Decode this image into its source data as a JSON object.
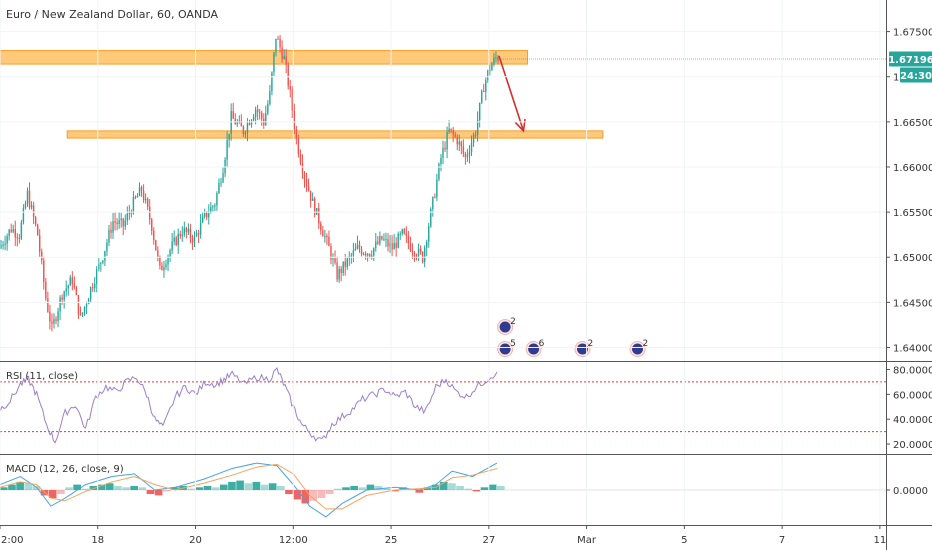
{
  "chart_data": [
    {
      "type": "candlestick",
      "title": "Euro / New Zealand Dollar, 60, OANDA",
      "ylim": [
        1.6385,
        1.6785
      ],
      "y_ticks": [
        "1.67500",
        "1.67000",
        "1.66500",
        "1.66000",
        "1.65500",
        "1.65000",
        "1.64500",
        "1.64000"
      ],
      "y_tick_values": [
        1.675,
        1.67,
        1.665,
        1.66,
        1.655,
        1.65,
        1.645,
        1.64
      ],
      "x_ticks": [
        "2:00",
        "18",
        "20",
        "12:00",
        "25",
        "27",
        "Mar",
        "5",
        "7",
        "11"
      ],
      "x_tick_positions": [
        0,
        48,
        96,
        144,
        192,
        240,
        288,
        336,
        384,
        432
      ],
      "x_range": [
        0,
        435
      ],
      "last_price": "1.67196",
      "last_price_value": 1.67196,
      "countdown": "24:30",
      "countdown_value": 1.6705,
      "up_color": "#26a69a",
      "down_color": "#ef5350",
      "zones": [
        {
          "x0": -2,
          "x1": 259,
          "low": 1.6714,
          "high": 1.6729
        },
        {
          "x0": 33,
          "x1": 296,
          "low": 1.6632,
          "high": 1.664
        }
      ],
      "arrow": {
        "from": [
          245,
          1.6723
        ],
        "to": [
          257,
          1.664
        ],
        "color": "#d32f2f"
      },
      "price_path": [
        [
          0,
          1.651
        ],
        [
          6,
          1.6532
        ],
        [
          10,
          1.6525
        ],
        [
          14,
          1.657
        ],
        [
          19,
          1.6525
        ],
        [
          23,
          1.6455
        ],
        [
          26,
          1.642
        ],
        [
          31,
          1.646
        ],
        [
          36,
          1.6475
        ],
        [
          40,
          1.6432
        ],
        [
          45,
          1.6465
        ],
        [
          51,
          1.6502
        ],
        [
          56,
          1.654
        ],
        [
          61,
          1.6535
        ],
        [
          66,
          1.656
        ],
        [
          70,
          1.6575
        ],
        [
          75,
          1.6535
        ],
        [
          79,
          1.6485
        ],
        [
          85,
          1.6512
        ],
        [
          90,
          1.653
        ],
        [
          96,
          1.652
        ],
        [
          101,
          1.6545
        ],
        [
          106,
          1.656
        ],
        [
          110,
          1.66
        ],
        [
          114,
          1.6655
        ],
        [
          120,
          1.664
        ],
        [
          126,
          1.6665
        ],
        [
          130,
          1.665
        ],
        [
          133,
          1.668
        ],
        [
          136,
          1.6745
        ],
        [
          140,
          1.672
        ],
        [
          143,
          1.668
        ],
        [
          146,
          1.663
        ],
        [
          150,
          1.659
        ],
        [
          154,
          1.656
        ],
        [
          158,
          1.6535
        ],
        [
          162,
          1.651
        ],
        [
          166,
          1.648
        ],
        [
          171,
          1.6495
        ],
        [
          176,
          1.651
        ],
        [
          182,
          1.6505
        ],
        [
          188,
          1.652
        ],
        [
          193,
          1.651
        ],
        [
          198,
          1.6525
        ],
        [
          203,
          1.651
        ],
        [
          208,
          1.65
        ],
        [
          213,
          1.656
        ],
        [
          217,
          1.661
        ],
        [
          221,
          1.664
        ],
        [
          225,
          1.663
        ],
        [
          229,
          1.661
        ],
        [
          234,
          1.664
        ],
        [
          238,
          1.669
        ],
        [
          241,
          1.671
        ],
        [
          244,
          1.6721
        ]
      ]
    },
    {
      "type": "line",
      "title": "RSI (11, close)",
      "ylim": [
        12,
        86
      ],
      "y_ticks": [
        "80.0000",
        "60.0000",
        "40.0000",
        "20.0000"
      ],
      "y_tick_values": [
        80,
        60,
        40,
        20
      ],
      "levels": [
        70,
        30
      ],
      "line_color": "#9c7fc8",
      "level_color": "#e53935",
      "series": [
        [
          0,
          48
        ],
        [
          5,
          55
        ],
        [
          10,
          68
        ],
        [
          14,
          72
        ],
        [
          18,
          60
        ],
        [
          23,
          35
        ],
        [
          27,
          22
        ],
        [
          32,
          45
        ],
        [
          37,
          52
        ],
        [
          42,
          32
        ],
        [
          47,
          58
        ],
        [
          52,
          66
        ],
        [
          57,
          62
        ],
        [
          62,
          70
        ],
        [
          67,
          74
        ],
        [
          72,
          60
        ],
        [
          76,
          40
        ],
        [
          80,
          33
        ],
        [
          86,
          58
        ],
        [
          91,
          66
        ],
        [
          96,
          60
        ],
        [
          101,
          70
        ],
        [
          106,
          68
        ],
        [
          110,
          72
        ],
        [
          114,
          76
        ],
        [
          120,
          68
        ],
        [
          126,
          74
        ],
        [
          132,
          72
        ],
        [
          136,
          80
        ],
        [
          140,
          66
        ],
        [
          144,
          50
        ],
        [
          148,
          36
        ],
        [
          153,
          28
        ],
        [
          158,
          22
        ],
        [
          163,
          36
        ],
        [
          168,
          42
        ],
        [
          173,
          48
        ],
        [
          178,
          56
        ],
        [
          184,
          60
        ],
        [
          189,
          64
        ],
        [
          194,
          58
        ],
        [
          199,
          62
        ],
        [
          204,
          50
        ],
        [
          209,
          46
        ],
        [
          214,
          66
        ],
        [
          219,
          72
        ],
        [
          224,
          62
        ],
        [
          229,
          58
        ],
        [
          234,
          66
        ],
        [
          239,
          72
        ],
        [
          244,
          78
        ]
      ]
    },
    {
      "type": "bar",
      "title": "MACD (12, 26, close, 9)",
      "ylim": [
        -0.0026,
        0.0026
      ],
      "y_ticks": [
        "0.0000"
      ],
      "y_tick_values": [
        0
      ],
      "macd_color": "#4aa3df",
      "signal_color": "#f4a460",
      "histogram": [
        [
          0,
          0.0002
        ],
        [
          4,
          0.0004
        ],
        [
          8,
          0.0006
        ],
        [
          12,
          0.0005
        ],
        [
          16,
          0.0003
        ],
        [
          20,
          -0.0004
        ],
        [
          24,
          -0.0006
        ],
        [
          28,
          -0.0003
        ],
        [
          32,
          0.0002
        ],
        [
          36,
          0.0004
        ],
        [
          40,
          0.0001
        ],
        [
          44,
          0.0003
        ],
        [
          48,
          0.0004
        ],
        [
          52,
          0.0005
        ],
        [
          56,
          0.0003
        ],
        [
          60,
          0.0002
        ],
        [
          64,
          0.0003
        ],
        [
          68,
          0.0002
        ],
        [
          72,
          -0.0003
        ],
        [
          76,
          -0.0004
        ],
        [
          80,
          -0.0001
        ],
        [
          84,
          0.0002
        ],
        [
          88,
          0.0003
        ],
        [
          92,
          0.0001
        ],
        [
          96,
          0.0002
        ],
        [
          100,
          0.0003
        ],
        [
          104,
          0.0002
        ],
        [
          108,
          0.0004
        ],
        [
          112,
          0.0006
        ],
        [
          116,
          0.0007
        ],
        [
          120,
          0.0005
        ],
        [
          124,
          0.0006
        ],
        [
          128,
          0.0004
        ],
        [
          132,
          0.0005
        ],
        [
          136,
          0.0003
        ],
        [
          140,
          -0.0003
        ],
        [
          144,
          -0.0007
        ],
        [
          148,
          -0.001
        ],
        [
          152,
          -0.0008
        ],
        [
          156,
          -0.0006
        ],
        [
          160,
          -0.0003
        ],
        [
          164,
          0.0001
        ],
        [
          168,
          0.0002
        ],
        [
          172,
          0.0003
        ],
        [
          176,
          0.0002
        ],
        [
          180,
          0.0004
        ],
        [
          184,
          0.0003
        ],
        [
          188,
          0.0001
        ],
        [
          192,
          -0.0001
        ],
        [
          196,
          0.0002
        ],
        [
          200,
          0.0001
        ],
        [
          204,
          -0.0002
        ],
        [
          208,
          0.0002
        ],
        [
          212,
          0.0004
        ],
        [
          216,
          0.0006
        ],
        [
          220,
          0.0005
        ],
        [
          224,
          0.0003
        ],
        [
          228,
          0.0001
        ],
        [
          232,
          -0.0001
        ],
        [
          236,
          0.0002
        ],
        [
          240,
          0.0004
        ],
        [
          244,
          0.0003
        ]
      ],
      "macd": [
        [
          0,
          0.0004
        ],
        [
          10,
          0.001
        ],
        [
          18,
          0.0002
        ],
        [
          25,
          -0.0012
        ],
        [
          32,
          -0.0006
        ],
        [
          42,
          0.0004
        ],
        [
          55,
          0.001
        ],
        [
          66,
          0.0012
        ],
        [
          76,
          0.0
        ],
        [
          86,
          0.0002
        ],
        [
          100,
          0.0008
        ],
        [
          114,
          0.0016
        ],
        [
          126,
          0.002
        ],
        [
          136,
          0.0018
        ],
        [
          144,
          0.0004
        ],
        [
          152,
          -0.0012
        ],
        [
          160,
          -0.002
        ],
        [
          168,
          -0.001
        ],
        [
          180,
          0.0
        ],
        [
          194,
          0.0002
        ],
        [
          206,
          0.0
        ],
        [
          214,
          0.0004
        ],
        [
          222,
          0.0014
        ],
        [
          232,
          0.001
        ],
        [
          244,
          0.002
        ]
      ],
      "signal": [
        [
          0,
          0.0002
        ],
        [
          10,
          0.0006
        ],
        [
          18,
          0.0004
        ],
        [
          25,
          -0.0006
        ],
        [
          32,
          -0.0008
        ],
        [
          42,
          -0.0001
        ],
        [
          55,
          0.0006
        ],
        [
          66,
          0.001
        ],
        [
          76,
          0.0004
        ],
        [
          86,
          0.0
        ],
        [
          100,
          0.0005
        ],
        [
          114,
          0.0011
        ],
        [
          126,
          0.0017
        ],
        [
          136,
          0.0019
        ],
        [
          144,
          0.0012
        ],
        [
          152,
          -0.0004
        ],
        [
          160,
          -0.0014
        ],
        [
          168,
          -0.0014
        ],
        [
          180,
          -0.0004
        ],
        [
          194,
          0.0
        ],
        [
          206,
          0.0001
        ],
        [
          214,
          0.0002
        ],
        [
          222,
          0.0009
        ],
        [
          232,
          0.0011
        ],
        [
          244,
          0.0016
        ]
      ]
    }
  ],
  "events": [
    {
      "x": 248,
      "count": "2",
      "row": 0
    },
    {
      "x": 248,
      "count": "5",
      "row": 1
    },
    {
      "x": 262,
      "count": "6",
      "row": 1
    },
    {
      "x": 286,
      "count": "2",
      "row": 1
    },
    {
      "x": 313,
      "count": "2",
      "row": 1
    }
  ]
}
